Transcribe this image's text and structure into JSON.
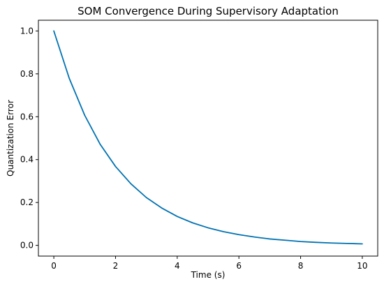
{
  "chart_data": {
    "type": "line",
    "title": "SOM Convergence During Supervisory Adaptation",
    "xlabel": "Time (s)",
    "ylabel": "Quantization Error",
    "xlim": [
      -0.5,
      10.5
    ],
    "ylim": [
      -0.05,
      1.05
    ],
    "xticks": [
      0,
      2,
      4,
      6,
      8,
      10
    ],
    "xtick_labels": [
      "0",
      "2",
      "4",
      "6",
      "8",
      "10"
    ],
    "yticks": [
      0.0,
      0.2,
      0.4,
      0.6,
      0.8,
      1.0
    ],
    "ytick_labels": [
      "0.0",
      "0.2",
      "0.4",
      "0.6",
      "0.8",
      "1.0"
    ],
    "grid": false,
    "series": [
      {
        "color": "#0072b2",
        "x": [
          0,
          0.5,
          1,
          1.5,
          2,
          2.5,
          3,
          3.5,
          4,
          4.5,
          5,
          5.5,
          6,
          6.5,
          7,
          7.5,
          8,
          8.5,
          9,
          9.5,
          10
        ],
        "y": [
          1.0,
          0.779,
          0.607,
          0.472,
          0.368,
          0.287,
          0.223,
          0.174,
          0.135,
          0.105,
          0.082,
          0.064,
          0.05,
          0.039,
          0.03,
          0.024,
          0.018,
          0.014,
          0.011,
          0.009,
          0.007
        ]
      }
    ]
  }
}
